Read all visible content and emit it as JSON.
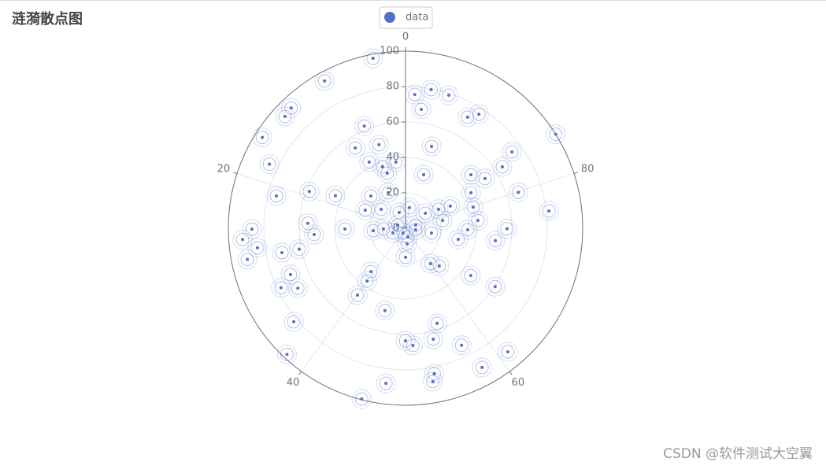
{
  "chart_data": {
    "type": "polar-scatter",
    "title": "涟漪散点图",
    "legend": "top",
    "watermark": "CSDN @软件测试大空翼",
    "xlim": [
      0,
      100
    ],
    "xticks": [
      0,
      20,
      40,
      60,
      80
    ],
    "direction": "counterclockwise",
    "ylim": [
      0,
      100
    ],
    "yticks": [
      0,
      20,
      40,
      60,
      80,
      100
    ],
    "series": [
      {
        "name": "data",
        "color": "#5470c6",
        "r": [
          97.7,
          94.9,
          93.7,
          92.8,
          95.7,
          84.9,
          75.1,
          58.1,
          43.6,
          86.7,
          92.2,
          84.3,
          91.0,
          71.1,
          61.2,
          55.2,
          51.7,
          34.2,
          70.0,
          77.9,
          69.6,
          82.3,
          97.8,
          99.6,
          88.3,
          48.0,
          46.5,
          36.9,
          31.3,
          16.4,
          63.6,
          66.3,
          64.6,
          56.6,
          83.8,
          88.0,
          73.3,
          89.7,
          90.6,
          60.4,
          45.5,
          24.5,
          28.6,
          14.9,
          30.4,
          35.1,
          51.2,
          57.3,
          81.5,
          66.8,
          41.1,
          40.0,
          42.0,
          52.9,
          47.7,
          64.7,
          73.9,
          100.0,
          76.6,
          71.8,
          79.0,
          79.6,
          75.7,
          67.7,
          48.5,
          31.9,
          62.2,
          49.5,
          53.5,
          42.6,
          37.0,
          32.8,
          37.7,
          22.3,
          26.7,
          24.9,
          17.4,
          18.3,
          12.5,
          9.6,
          11.8,
          4.8,
          3.0,
          5.1,
          6.0,
          14.0,
          21.5,
          28.2,
          21.4,
          5.8,
          7.6,
          8.9
        ],
        "theta": [
          3.0,
          8.0,
          12.1,
          13.1,
          16.0,
          18.0,
          21.1,
          19.2,
          18.1,
          25.1,
          26.1,
          27.1,
          28.1,
          28.1,
          28.1,
          24.2,
          26.1,
          25.2,
          31.1,
          32.1,
          33.1,
          36.1,
          38.0,
          46.0,
          48.0,
          46.1,
          40.1,
          40.0,
          39.3,
          50.0,
          50.0,
          51.0,
          53.9,
          55.1,
          53.1,
          52.8,
          57.1,
          58.0,
          61.0,
          65.8,
          65.0,
          59.8,
          61.6,
          72.1,
          71.7,
          74.6,
          72.8,
          74.9,
          76.9,
          79.9,
          76.7,
          79.8,
          82.9,
          83.9,
          85.9,
          84.0,
          84.9,
          83.9,
          90.9,
          91.9,
          95.0,
          97.1,
          98.9,
          97.9,
          95.1,
          94.8,
          6.1,
          4.9,
          8.9,
          8.0,
          5.7,
          5.1,
          2.3,
          7.2,
          13.1,
          18.3,
          14.5,
          26.2,
          25.6,
          6.1,
          97.0,
          18.9,
          42.5,
          54.2,
          79.8,
          85.3,
          83.3,
          82.3,
          78.3,
          72.5,
          30.7,
          51.6
        ]
      }
    ]
  }
}
